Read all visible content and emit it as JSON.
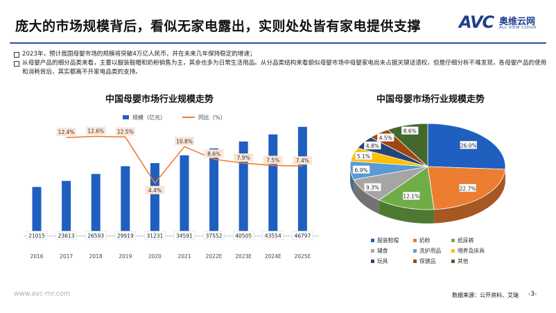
{
  "title": "庞大的市场规模背后，看似无家电露出，实则处处皆有家电提供支撑",
  "logo": {
    "mark": "AVC",
    "name_cn": "奥维云网",
    "name_en": "ALL VIEW CLOUD",
    "color": "#1f3f8f"
  },
  "notes": [
    "2023年，预计我国母婴市场的规模将突破4万亿人民币，并在未来几年保持稳定的增速；",
    "从母婴产品的细分品类来看，主要以服装鞋帽和奶粉销售为主，其余也多为日常生活用品。从分品类结构来看貌似母婴市场中母婴家电尚未占据关键话语权，但是仔细分析不难发现，各母婴产品的使用和消耗背后，其实都离不开家电品类的支持。"
  ],
  "footer": {
    "url": "www.avc-mr.com",
    "source": "数据来源：公开资料、艾瑞",
    "page": "-3-"
  },
  "chart_data": [
    {
      "type": "bar",
      "title": "中国母婴市场行业规模走势",
      "categories": [
        "2016",
        "2017",
        "2018",
        "2019",
        "2020",
        "2021",
        "2022E",
        "2023E",
        "2024E",
        "2025E"
      ],
      "series": [
        {
          "name": "规模（亿元）",
          "type": "bar",
          "color": "#1f5fbf",
          "values": [
            21015,
            23613,
            26593,
            29919,
            31231,
            34591,
            37552,
            40505,
            43554,
            46797
          ]
        },
        {
          "name": "同比（%）",
          "type": "line",
          "color": "#ed7d31",
          "unit": "%",
          "values": [
            null,
            12.4,
            12.6,
            12.5,
            4.4,
            10.8,
            8.6,
            7.9,
            7.5,
            7.4
          ]
        }
      ],
      "legend_position": "top",
      "grid": false
    },
    {
      "type": "pie",
      "title": "中国母婴市场行业规模走势",
      "slices": [
        {
          "label": "服装鞋帽",
          "value": 26.0,
          "color": "#1f5fbf"
        },
        {
          "label": "奶粉",
          "value": 22.7,
          "color": "#ed7d31"
        },
        {
          "label": "纸尿裤",
          "value": 12.1,
          "color": "#70ad47"
        },
        {
          "label": "辅食",
          "value": 9.3,
          "color": "#a5a5a5"
        },
        {
          "label": "洗护用品",
          "value": 6.9,
          "color": "#5b9bd5"
        },
        {
          "label": "喂养及床具",
          "value": 5.1,
          "color": "#ffc000"
        },
        {
          "label": "玩具",
          "value": 4.8,
          "color": "#264478"
        },
        {
          "label": "保健品",
          "value": 4.5,
          "color": "#9e480e"
        },
        {
          "label": "其他",
          "value": 8.6,
          "color": "#43682b"
        }
      ],
      "unit": "%",
      "legend_position": "bottom"
    }
  ]
}
